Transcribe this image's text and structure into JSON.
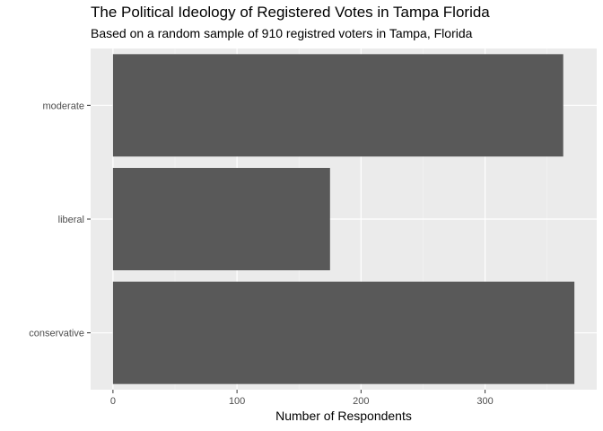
{
  "chart_data": {
    "type": "bar",
    "orientation": "horizontal",
    "title": "The Political Ideology of Registered Votes in Tampa Florida",
    "subtitle": "Based on a random sample of 910 registred voters in Tampa, Florida",
    "xlabel": "Number of Respondents",
    "ylabel": "",
    "categories": [
      "moderate",
      "liberal",
      "conservative"
    ],
    "values": [
      363,
      175,
      372
    ],
    "xlim": [
      -18,
      390
    ],
    "xticks": [
      0,
      100,
      200,
      300
    ],
    "grid": true,
    "legend": "none",
    "colors": {
      "bar": "#595959",
      "panel": "#ebebeb",
      "grid_major": "#ffffff",
      "grid_minor": "#f5f5f5"
    }
  }
}
